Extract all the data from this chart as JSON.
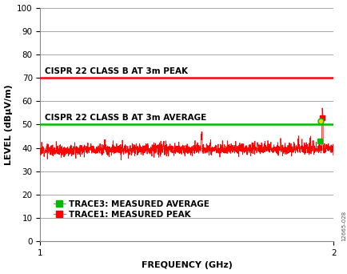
{
  "xlim": [
    1,
    2
  ],
  "ylim": [
    0,
    100
  ],
  "yticks": [
    0,
    10,
    20,
    30,
    40,
    50,
    60,
    70,
    80,
    90,
    100
  ],
  "xlabel": "FREQUENCY (GHz)",
  "ylabel": "LEVEL (dBµV/m)",
  "cispr_peak_y": 70,
  "cispr_avg_y": 50,
  "cispr_peak_label": "CISPR 22 CLASS B AT 3m PEAK",
  "cispr_avg_label": "CISPR 22 CLASS B AT 3m AVERAGE",
  "cispr_peak_color": "#ff0000",
  "cispr_avg_color": "#00bb00",
  "trace_peak_color": "#ff0000",
  "trace_avg_color": "#00bb00",
  "trace_peak_label": "TRACE1: MEASURED PEAK",
  "trace_avg_label": "TRACE3: MEASURED AVERAGE",
  "noise_floor_y": 39.0,
  "noise_amplitude": 1.2,
  "spike_x": 1.962,
  "spike_peak_y": 53.0,
  "spike_avg_y": 43.0,
  "avg_dot_x": 1.955,
  "avg_dot_y": 51.5,
  "background_color": "#ffffff",
  "grid_color": "#999999",
  "label_fontsize": 8,
  "tick_fontsize": 7.5,
  "legend_fontsize": 7.5,
  "watermark": "12665-028"
}
